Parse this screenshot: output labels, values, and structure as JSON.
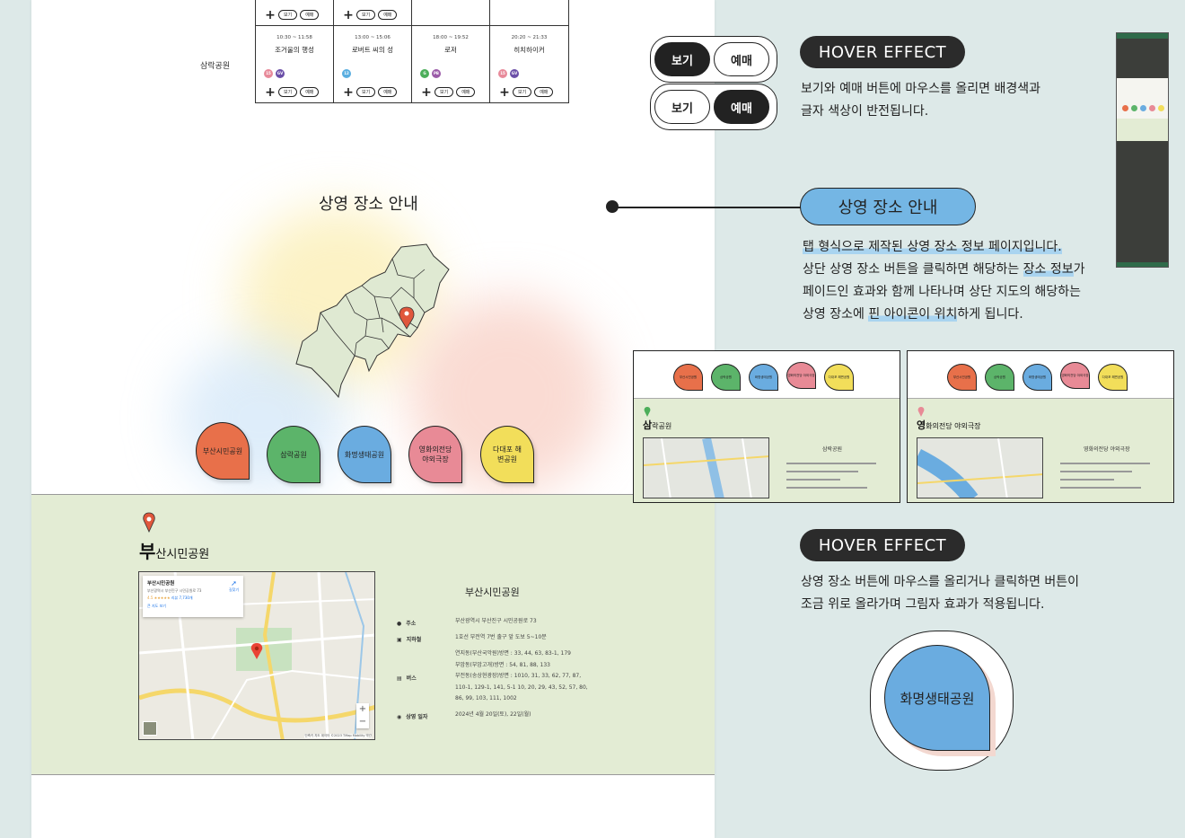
{
  "schedule": {
    "venue_label": "삼락공원",
    "top_row": [
      {
        "has_buttons": true
      },
      {
        "has_buttons": true
      },
      {
        "has_buttons": false
      },
      {
        "has_buttons": false
      }
    ],
    "movies": [
      {
        "time": "10:30 ~ 11:58",
        "title": "조거울의 행성",
        "badges": [
          {
            "text": "15",
            "color": "#e88a9a"
          },
          {
            "text": "GV",
            "color": "#6b4fa8"
          }
        ]
      },
      {
        "time": "13:00 ~ 15:06",
        "title": "로버트 씨의 성",
        "badges": [
          {
            "text": "12",
            "color": "#5aaee0"
          }
        ]
      },
      {
        "time": "18:00 ~ 19:52",
        "title": "로저",
        "badges": [
          {
            "text": "G",
            "color": "#4cae5a"
          },
          {
            "text": "PB",
            "color": "#9b5aa8"
          }
        ]
      },
      {
        "time": "20:20 ~ 21:33",
        "title": "히치하이커",
        "badges": [
          {
            "text": "15",
            "color": "#e88a9a"
          },
          {
            "text": "GV",
            "color": "#6b4fa8"
          }
        ]
      }
    ],
    "view_label": "보기",
    "book_label": "예매"
  },
  "location": {
    "title": "상영 장소 안내",
    "buttons": [
      {
        "label": "부산시민공원",
        "color": "#e8704a"
      },
      {
        "label": "삼락공원",
        "color": "#5cb46a"
      },
      {
        "label": "화명생태공원",
        "color": "#6aace0"
      },
      {
        "label": "영화의전당 야외극장",
        "color": "#e88a96"
      },
      {
        "label": "다대포 해변공원",
        "color": "#f2de5a"
      }
    ]
  },
  "park_info": {
    "name_first": "부",
    "name_rest": "산시민공원",
    "title": "부산시민공원",
    "map_place": "부산시민공원",
    "map_address": "부산광역시 부산진구 시민공원로 73",
    "map_rating": "4.5 ★★★★★",
    "map_reviews": "리뷰 7,730개",
    "map_directions": "길찾기",
    "map_more": "큰 지도 보기",
    "map_footer": "단축키  지도 데이터 ©2023 TMap Mobility  약관",
    "rows": [
      {
        "icon": "●",
        "label": "주소",
        "value": "부산광역시 부산진구 시민공원로 73"
      },
      {
        "icon": "▣",
        "label": "지하철",
        "value": "1호선 부전역 7번 출구 앞 도보 5~10분"
      },
      {
        "icon": "▤",
        "label": "버스",
        "values": [
          "연지동(부산국악원)방면 : 33, 44, 63, 83-1, 179",
          "부암동(부암고개)방면 : 54, 81, 88, 133",
          "부전동(송상현광장)방면 : 1010, 31, 33, 62, 77, 87,",
          "110-1, 129-1, 141, 5-1 10, 20, 29, 43, 52, 57, 80,",
          "86, 99, 103, 111, 1002"
        ]
      },
      {
        "icon": "◉",
        "label": "상영 일자",
        "value": "2024년 4월 20일(토), 22일(월)"
      }
    ]
  },
  "annotations": {
    "hover1_chip": "HOVER EFFECT",
    "hover1_desc": [
      "보기와 예매 버튼에 마우스를 올리면 배경색과",
      "글자 색상이 반전됩니다."
    ],
    "hover_view": "보기",
    "hover_book": "예매",
    "location_chip": "상영 장소 안내",
    "location_desc_1a": "탭 형식으로 제작된 상영 장소 정보 페이지입니다.",
    "location_desc_2a": "상단 상영 장소 버튼을 클릭하면 해당하는 ",
    "location_desc_2b": "장소 정보",
    "location_desc_2c": "가",
    "location_desc_3": "페이드인 효과와 함께 나타나며 상단 지도의 해당하는",
    "location_desc_4a": "상영 장소에 ",
    "location_desc_4b": "핀 아이콘이 위치",
    "location_desc_4c": "하게 됩니다.",
    "hover2_chip": "HOVER EFFECT",
    "hover2_desc": [
      "상영 장소 버튼에 마우스를 올리거나 클릭하면 버튼이",
      "조금 위로 올라가며 그림자 효과가 적용됩니다."
    ],
    "big_button": "화명생태공원"
  },
  "thumbs": [
    {
      "name_first": "삼",
      "name_rest": "락공원",
      "info_title": "삼락공원"
    },
    {
      "name_first": "영",
      "name_rest": "화의전당 야외극장",
      "info_title": "영화의전당 야외극장"
    }
  ]
}
